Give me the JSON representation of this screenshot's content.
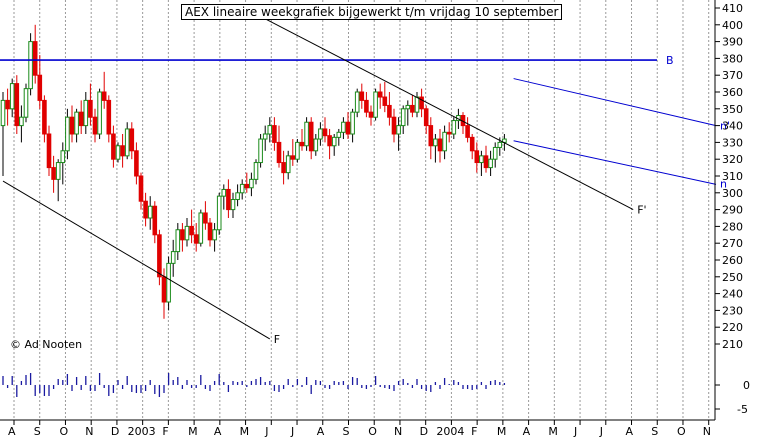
{
  "title": "AEX lineaire weekgrafiek bijgewerkt t/m vrijdag 10 september",
  "credit": "© Ad Nooten",
  "chart_data": {
    "type": "candlestick",
    "grid": true,
    "y_axis": {
      "side": "right",
      "min": 200,
      "max": 410,
      "ticks": [
        410,
        400,
        390,
        380,
        370,
        360,
        350,
        340,
        330,
        320,
        310,
        300,
        290,
        280,
        270,
        260,
        250,
        240,
        230,
        220,
        210
      ]
    },
    "volume_axis": {
      "ticks": [
        0,
        -5
      ]
    },
    "x_ticks": [
      "A",
      "S",
      "O",
      "N",
      "D",
      "2003",
      "F",
      "M",
      "A",
      "M",
      "J",
      "J",
      "A",
      "S",
      "O",
      "N",
      "D",
      "2004",
      "F",
      "M",
      "A",
      "M",
      "J",
      "J",
      "A",
      "S",
      "O",
      "N"
    ],
    "trendlines": [
      {
        "name": "B",
        "type": "horizontal",
        "value": 379
      },
      {
        "name": "F",
        "from_week": 0,
        "from_value": 307,
        "to_week": 58,
        "to_value": 213
      },
      {
        "name": "F'",
        "from_week": 56,
        "from_value": 405,
        "to_week": 137,
        "to_value": 290
      },
      {
        "name": "n'",
        "from_week": 111,
        "from_value": 368,
        "to_week": 155,
        "to_value": 340
      },
      {
        "name": "n",
        "from_week": 111,
        "from_value": 331,
        "to_week": 155,
        "to_value": 305
      }
    ],
    "candles": [
      [
        340,
        360,
        310,
        355
      ],
      [
        355,
        362,
        340,
        350
      ],
      [
        350,
        368,
        345,
        365
      ],
      [
        365,
        370,
        335,
        340
      ],
      [
        340,
        352,
        330,
        345
      ],
      [
        345,
        365,
        342,
        362
      ],
      [
        362,
        395,
        358,
        390
      ],
      [
        390,
        400,
        365,
        370
      ],
      [
        370,
        382,
        350,
        355
      ],
      [
        355,
        358,
        330,
        335
      ],
      [
        335,
        340,
        310,
        315
      ],
      [
        315,
        322,
        300,
        308
      ],
      [
        308,
        320,
        295,
        318
      ],
      [
        318,
        330,
        305,
        325
      ],
      [
        325,
        350,
        320,
        345
      ],
      [
        345,
        352,
        330,
        335
      ],
      [
        335,
        350,
        330,
        348
      ],
      [
        348,
        355,
        335,
        340
      ],
      [
        340,
        360,
        335,
        355
      ],
      [
        355,
        365,
        340,
        345
      ],
      [
        345,
        350,
        330,
        335
      ],
      [
        335,
        362,
        332,
        360
      ],
      [
        360,
        372,
        350,
        355
      ],
      [
        355,
        358,
        330,
        335
      ],
      [
        335,
        340,
        315,
        320
      ],
      [
        320,
        330,
        318,
        328
      ],
      [
        328,
        335,
        315,
        322
      ],
      [
        322,
        342,
        320,
        338
      ],
      [
        338,
        342,
        320,
        325
      ],
      [
        325,
        330,
        305,
        310
      ],
      [
        310,
        312,
        290,
        295
      ],
      [
        295,
        300,
        280,
        285
      ],
      [
        285,
        298,
        278,
        292
      ],
      [
        292,
        295,
        270,
        275
      ],
      [
        275,
        278,
        245,
        250
      ],
      [
        250,
        255,
        225,
        235
      ],
      [
        235,
        262,
        230,
        258
      ],
      [
        258,
        272,
        250,
        265
      ],
      [
        265,
        282,
        260,
        278
      ],
      [
        278,
        282,
        265,
        272
      ],
      [
        272,
        285,
        268,
        280
      ],
      [
        280,
        290,
        270,
        275
      ],
      [
        275,
        282,
        265,
        270
      ],
      [
        270,
        290,
        268,
        288
      ],
      [
        288,
        295,
        278,
        282
      ],
      [
        282,
        285,
        268,
        272
      ],
      [
        272,
        282,
        265,
        278
      ],
      [
        278,
        300,
        275,
        298
      ],
      [
        298,
        305,
        290,
        302
      ],
      [
        302,
        308,
        285,
        290
      ],
      [
        290,
        300,
        285,
        296
      ],
      [
        296,
        305,
        292,
        300
      ],
      [
        300,
        308,
        296,
        305
      ],
      [
        305,
        312,
        300,
        303
      ],
      [
        303,
        312,
        298,
        308
      ],
      [
        308,
        320,
        305,
        318
      ],
      [
        318,
        335,
        315,
        332
      ],
      [
        332,
        340,
        325,
        335
      ],
      [
        335,
        345,
        330,
        340
      ],
      [
        340,
        345,
        325,
        330
      ],
      [
        330,
        340,
        315,
        318
      ],
      [
        318,
        325,
        305,
        312
      ],
      [
        312,
        325,
        308,
        322
      ],
      [
        322,
        332,
        316,
        320
      ],
      [
        320,
        332,
        318,
        330
      ],
      [
        330,
        338,
        325,
        328
      ],
      [
        328,
        345,
        325,
        342
      ],
      [
        342,
        345,
        320,
        325
      ],
      [
        325,
        335,
        322,
        332
      ],
      [
        332,
        342,
        328,
        338
      ],
      [
        338,
        345,
        330,
        334
      ],
      [
        334,
        338,
        320,
        328
      ],
      [
        328,
        335,
        322,
        333
      ],
      [
        333,
        338,
        328,
        336
      ],
      [
        336,
        345,
        332,
        342
      ],
      [
        342,
        348,
        332,
        335
      ],
      [
        335,
        350,
        330,
        348
      ],
      [
        348,
        362,
        345,
        360
      ],
      [
        360,
        365,
        350,
        355
      ],
      [
        355,
        360,
        345,
        348
      ],
      [
        348,
        352,
        340,
        345
      ],
      [
        345,
        362,
        343,
        360
      ],
      [
        360,
        365,
        350,
        357
      ],
      [
        357,
        366,
        348,
        352
      ],
      [
        352,
        360,
        340,
        345
      ],
      [
        345,
        350,
        330,
        335
      ],
      [
        335,
        345,
        325,
        340
      ],
      [
        340,
        352,
        335,
        350
      ],
      [
        350,
        355,
        340,
        352
      ],
      [
        352,
        358,
        345,
        348
      ],
      [
        348,
        360,
        345,
        357
      ],
      [
        357,
        362,
        345,
        350
      ],
      [
        350,
        352,
        335,
        340
      ],
      [
        340,
        345,
        320,
        328
      ],
      [
        328,
        335,
        318,
        332
      ],
      [
        332,
        338,
        318,
        325
      ],
      [
        325,
        340,
        320,
        336
      ],
      [
        336,
        342,
        330,
        335
      ],
      [
        335,
        345,
        332,
        343
      ],
      [
        343,
        350,
        338,
        346
      ],
      [
        346,
        348,
        335,
        340
      ],
      [
        340,
        345,
        330,
        333
      ],
      [
        333,
        335,
        320,
        325
      ],
      [
        325,
        330,
        312,
        318
      ],
      [
        318,
        325,
        310,
        322
      ],
      [
        322,
        328,
        312,
        315
      ],
      [
        315,
        325,
        310,
        320
      ],
      [
        320,
        330,
        315,
        327
      ],
      [
        327,
        333,
        322,
        330
      ],
      [
        330,
        335,
        325,
        332
      ]
    ]
  }
}
